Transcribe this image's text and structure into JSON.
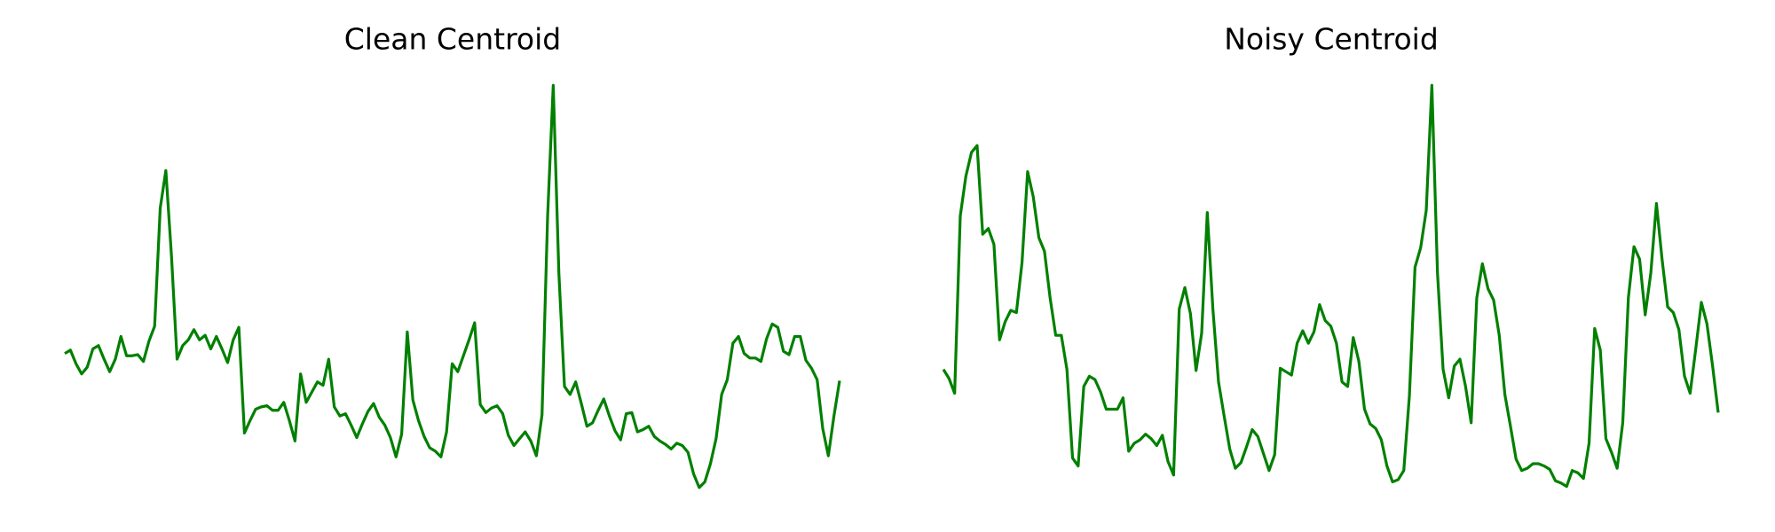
{
  "chart_data": [
    {
      "type": "line",
      "title": "Clean Centroid",
      "ylim": [
        0,
        380
      ],
      "grid": false,
      "series": [
        {
          "color": "#008000",
          "values": [
            129,
            132,
            120,
            111,
            117,
            133,
            136,
            124,
            113,
            124,
            144,
            127,
            127,
            128,
            122,
            140,
            153,
            257,
            290,
            215,
            124,
            136,
            141,
            150,
            141,
            145,
            133,
            144,
            133,
            121,
            141,
            152,
            59,
            70,
            80,
            82,
            83,
            79,
            79,
            86,
            70,
            52,
            111,
            86,
            95,
            104,
            101,
            124,
            82,
            74,
            76,
            66,
            55,
            67,
            78,
            85,
            73,
            66,
            55,
            38,
            58,
            148,
            88,
            70,
            56,
            46,
            43,
            38,
            60,
            120,
            113,
            127,
            141,
            156,
            84,
            77,
            81,
            83,
            76,
            57,
            48,
            54,
            60,
            52,
            39,
            75,
            250,
            365,
            200,
            100,
            93,
            104,
            85,
            65,
            68,
            79,
            89,
            74,
            61,
            53,
            76,
            77,
            60,
            62,
            65,
            56,
            52,
            49,
            45,
            50,
            48,
            42,
            23,
            11,
            16,
            32,
            54,
            93,
            106,
            138,
            144,
            129,
            125,
            125,
            122,
            142,
            155,
            152,
            131,
            128,
            144,
            144,
            123,
            116,
            106,
            63,
            39,
            74,
            105
          ]
        }
      ]
    },
    {
      "type": "line",
      "title": "Noisy Centroid",
      "ylim": [
        0,
        380
      ],
      "grid": false,
      "series": [
        {
          "color": "#008000",
          "values": [
            115,
            107,
            94,
            250,
            285,
            306,
            312,
            234,
            239,
            225,
            141,
            157,
            167,
            165,
            209,
            289,
            267,
            231,
            219,
            178,
            145,
            145,
            115,
            37,
            30,
            100,
            109,
            106,
            95,
            80,
            80,
            80,
            90,
            43,
            50,
            53,
            58,
            54,
            48,
            57,
            34,
            22,
            168,
            187,
            164,
            114,
            147,
            253,
            168,
            104,
            74,
            45,
            28,
            33,
            47,
            62,
            56,
            41,
            26,
            40,
            116,
            113,
            110,
            138,
            149,
            138,
            148,
            172,
            158,
            153,
            138,
            104,
            100,
            143,
            122,
            80,
            67,
            63,
            53,
            30,
            16,
            18,
            26,
            92,
            205,
            222,
            255,
            365,
            200,
            115,
            90,
            118,
            124,
            100,
            68,
            178,
            208,
            186,
            176,
            145,
            93,
            65,
            36,
            26,
            28,
            32,
            32,
            30,
            27,
            17,
            15,
            12,
            26,
            24,
            19,
            50,
            151,
            132,
            54,
            42,
            28,
            68,
            178,
            223,
            212,
            163,
            200,
            261,
            212,
            170,
            165,
            150,
            109,
            94,
            133,
            174,
            155,
            118,
            77
          ]
        }
      ]
    }
  ]
}
